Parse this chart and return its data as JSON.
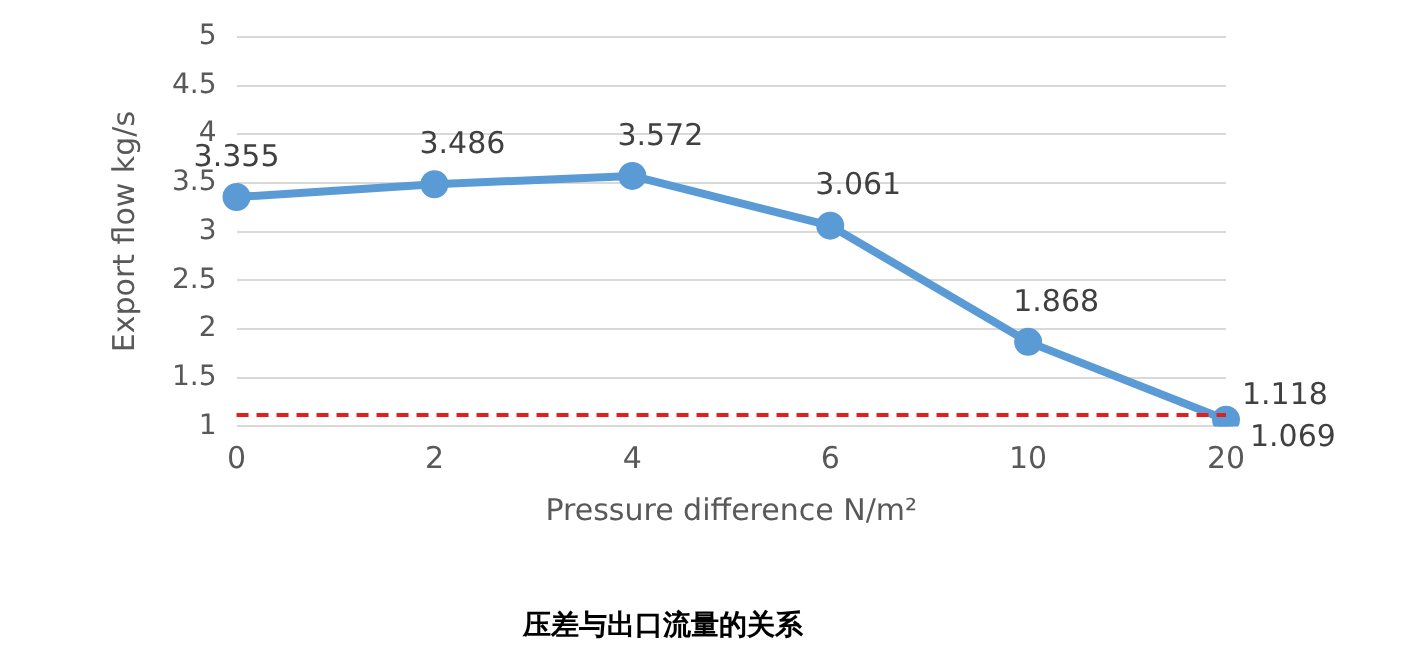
{
  "chart_data": {
    "type": "line",
    "title": "压差与出口流量的关系",
    "xlabel": "Pressure difference N/m²",
    "ylabel": "Export flow kg/s",
    "categories": [
      "0",
      "2",
      "4",
      "6",
      "10",
      "20"
    ],
    "series": [
      {
        "color": "#5b9bd5",
        "values": [
          3.355,
          3.486,
          3.572,
          3.061,
          1.868,
          1.069
        ]
      }
    ],
    "ylim": [
      1,
      5
    ],
    "yticks": [
      1,
      1.5,
      2,
      2.5,
      3,
      3.5,
      4,
      4.5,
      5
    ],
    "grid": "y",
    "legend": false,
    "marker": "circle",
    "line_style": "solid",
    "data_labels": true,
    "ref_lines": [
      {
        "axis": "y",
        "value": 1.118,
        "label": "1.118",
        "color": "#e02020",
        "line_style": "dashed"
      }
    ]
  }
}
